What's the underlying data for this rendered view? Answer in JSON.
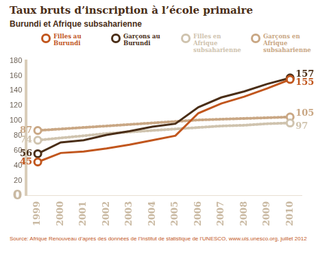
{
  "chart_data": {
    "type": "line",
    "title": "Taux bruts d’inscription à l’école primaire",
    "subtitle": "Burundi et Afrique subsaharienne",
    "source": "Source: Afrique Renouveau d’après des données de l’Institut de statistique de l’UNESCO, www.uis.unesco.org, juillet 2012",
    "categories": [
      "1999",
      "2000",
      "2001",
      "2002",
      "2003",
      "2004",
      "2005",
      "2006",
      "2007",
      "2008",
      "2009",
      "2010"
    ],
    "series": [
      {
        "name": "Filles au Burundi",
        "color": "#c1561d",
        "line_style": "solid",
        "marker": "circle",
        "values": [
          45,
          57,
          59,
          63,
          68,
          74,
          80,
          110,
          123,
          132,
          143,
          155
        ]
      },
      {
        "name": "Garçons au Burundi",
        "color": "#4a2e17",
        "line_style": "solid",
        "marker": "circle",
        "values": [
          56,
          71,
          74,
          81,
          86,
          92,
          96,
          118,
          131,
          139,
          149,
          157
        ]
      },
      {
        "name": "Filles en Afrique subsaharienne",
        "color": "#cfc3ae",
        "line_style": "dotted",
        "marker": "circle",
        "values": [
          74,
          77,
          80,
          83,
          85,
          87,
          89,
          91,
          93,
          94,
          96,
          97
        ]
      },
      {
        "name": "Garçons en Afrique subsaharienne",
        "color": "#c9a784",
        "line_style": "dotted",
        "marker": "circle",
        "values": [
          87,
          89,
          91,
          93,
          95,
          97,
          99,
          101,
          102,
          103,
          104,
          105
        ]
      }
    ],
    "annotations": [
      {
        "text": "45",
        "series": "Filles au Burundi",
        "x": "1999",
        "y": 45
      },
      {
        "text": "155",
        "series": "Filles au Burundi",
        "x": "2010",
        "y": 155
      },
      {
        "text": "56",
        "series": "Garçons au Burundi",
        "x": "1999",
        "y": 56
      },
      {
        "text": "157",
        "series": "Garçons au Burundi",
        "x": "2010",
        "y": 157
      },
      {
        "text": "74",
        "series": "Filles en Afrique subsaharienne",
        "x": "1999",
        "y": 74
      },
      {
        "text": "97",
        "series": "Filles en Afrique subsaharienne",
        "x": "2010",
        "y": 97
      },
      {
        "text": "87",
        "series": "Garçons en Afrique subsaharienne",
        "x": "1999",
        "y": 87
      },
      {
        "text": "105",
        "series": "Garçons en Afrique subsaharienne",
        "x": "2010",
        "y": 105
      }
    ],
    "ylim": [
      0,
      180
    ],
    "yticks": [
      0,
      20,
      40,
      60,
      80,
      100,
      120,
      140,
      160,
      180
    ],
    "grid": false,
    "legend": "top"
  }
}
